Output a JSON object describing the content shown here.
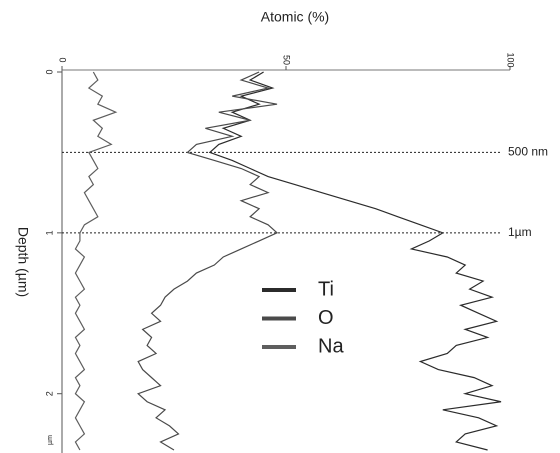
{
  "chart_data": {
    "type": "line",
    "orientation": "vertical-depth",
    "x_axis_label": "Atomic (%)",
    "y_axis_label": "Depth (µm)",
    "y_unit": "µm",
    "xlim": [
      0,
      100
    ],
    "xticks": [
      0,
      50,
      100
    ],
    "ylim": [
      0,
      2.35
    ],
    "yticks": [
      0,
      1,
      2
    ],
    "x": [
      0,
      0.05,
      0.1,
      0.15,
      0.2,
      0.25,
      0.3,
      0.35,
      0.4,
      0.45,
      0.5,
      0.55,
      0.6,
      0.65,
      0.7,
      0.75,
      0.8,
      0.85,
      0.9,
      0.95,
      1.0,
      1.05,
      1.1,
      1.15,
      1.2,
      1.25,
      1.3,
      1.35,
      1.4,
      1.45,
      1.5,
      1.55,
      1.6,
      1.65,
      1.7,
      1.75,
      1.8,
      1.85,
      1.9,
      1.95,
      2.0,
      2.05,
      2.1,
      2.15,
      2.2,
      2.25,
      2.3,
      2.35
    ],
    "series": [
      {
        "name": "Ti",
        "color": "#2b2b2b",
        "values": [
          45,
          42,
          47,
          40,
          44,
          38,
          42,
          36,
          40,
          35,
          33,
          38,
          42,
          46,
          52,
          58,
          64,
          70,
          75,
          80,
          85,
          82,
          78,
          86,
          90,
          88,
          94,
          91,
          96,
          89,
          93,
          97,
          90,
          95,
          88,
          86,
          80,
          84,
          92,
          96,
          90,
          98,
          85,
          93,
          97,
          90,
          88,
          95
        ]
      },
      {
        "name": "O",
        "color": "#4a4a4a",
        "values": [
          44,
          40,
          46,
          38,
          48,
          35,
          42,
          32,
          38,
          30,
          28,
          34,
          40,
          44,
          42,
          46,
          40,
          44,
          42,
          46,
          48,
          44,
          40,
          36,
          34,
          30,
          28,
          25,
          23,
          22,
          20,
          22,
          18,
          20,
          19,
          21,
          17,
          18,
          20,
          22,
          17,
          19,
          23,
          21,
          24,
          26,
          22,
          25
        ]
      },
      {
        "name": "Na",
        "color": "#5e5e5e",
        "values": [
          7,
          8,
          6,
          9,
          8,
          12,
          7,
          9,
          8,
          11,
          6,
          7,
          8,
          6,
          7,
          5,
          6,
          7,
          8,
          5,
          4,
          4,
          3,
          5,
          4,
          3,
          4,
          5,
          3,
          4,
          3,
          4,
          5,
          3,
          4,
          3,
          4,
          5,
          3,
          4,
          3,
          5,
          4,
          3,
          4,
          5,
          3,
          4
        ]
      }
    ],
    "annotations": [
      {
        "depth": 0.5,
        "label": "500 nm"
      },
      {
        "depth": 1,
        "label": "1µm"
      }
    ]
  }
}
